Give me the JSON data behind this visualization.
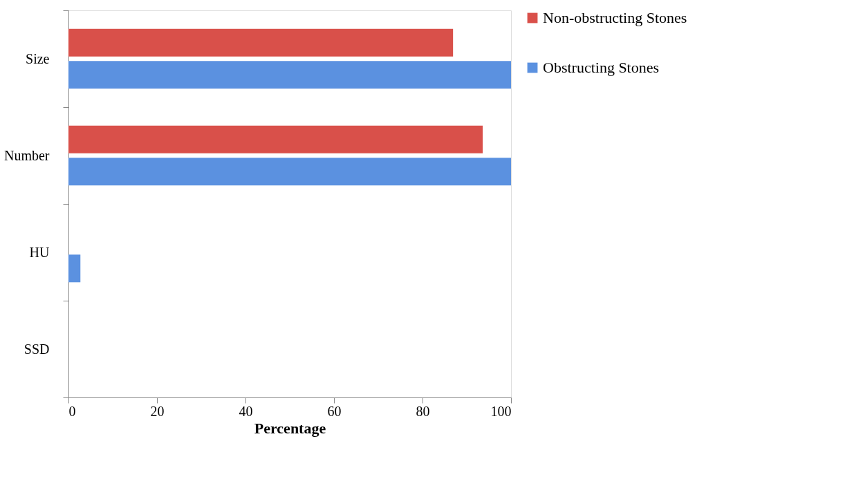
{
  "chart_data": {
    "type": "bar",
    "orientation": "horizontal",
    "xlabel": "Percentage",
    "categories": [
      "Size",
      "Number",
      "HU",
      "SSD"
    ],
    "series": [
      {
        "name": "Non-obstructing Stones",
        "color": "#d9504a",
        "values": [
          86.9,
          93.6,
          0,
          0
        ]
      },
      {
        "name": "Obstructing Stones",
        "color": "#5b91e0",
        "values": [
          100,
          100,
          2.7,
          0
        ]
      }
    ],
    "xlim": [
      0,
      100
    ],
    "xticks": [
      0,
      20,
      40,
      60,
      80,
      100
    ],
    "grid": false,
    "legend": "right"
  }
}
